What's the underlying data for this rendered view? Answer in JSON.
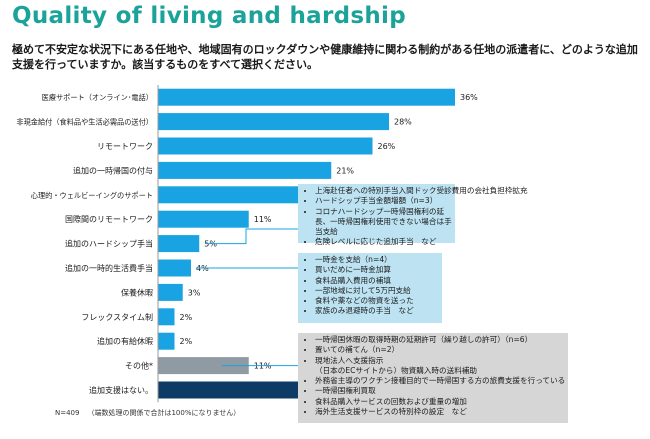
{
  "title": "Quality of living and hardship",
  "question": "極めて不安定な状況下にある任地や、地域固有のロックダウンや健康維持に関わる制約がある任地の派遣者に、どのような追加支援を行っていますか。該当するものをすべて選択ください。",
  "chart_data": {
    "type": "bar",
    "orientation": "horizontal",
    "categories": [
      "医療サポート（オンライン･電話）",
      "非現金給付（食料品や生活必需品の送付）",
      "リモートワーク",
      "追加の一時帰国の付与",
      "心理的・ウェルビーイングのサポート",
      "国際間のリモートワーク",
      "追加のハードシップ手当",
      "追加の一時的生活費手当",
      "保養休暇",
      "フレックスタイム制",
      "追加の有給休暇",
      "その他*",
      "追加支援はない。"
    ],
    "values": [
      36,
      28,
      26,
      21,
      20,
      11,
      5,
      4,
      3,
      2,
      2,
      11,
      25
    ],
    "value_labels": [
      "36%",
      "28%",
      "26%",
      "21%",
      "20%",
      "11%",
      "5%",
      "4%",
      "3%",
      "2%",
      "2%",
      "11%",
      "25%"
    ],
    "colors": [
      "#1aa3e2",
      "#1aa3e2",
      "#1aa3e2",
      "#1aa3e2",
      "#1aa3e2",
      "#1aa3e2",
      "#1aa3e2",
      "#1aa3e2",
      "#1aa3e2",
      "#1aa3e2",
      "#1aa3e2",
      "#8f9aa3",
      "#0d3b66"
    ],
    "xlim": [
      0,
      40
    ],
    "axis_line_color": "#999999",
    "connector_color": "#1aa3e2",
    "grid": false,
    "legend": false
  },
  "notes": {
    "hardship": [
      "上海赴任者への特別手当入間ドック受診費用の会社負担枠拡充",
      "ハードシップ手当金額増額（n=3）",
      "コロナハードシップ一時帰国権利の延長、一時帰国権利使用できない場合は手当支給",
      "危険レベルに応じた追加手当　など"
    ],
    "living_allowance": [
      "一時金を支給（n=4）",
      "買いだめに一時金加算",
      "食料品購入費用の補填",
      "一部地域に対して5万円支給",
      "食料や薬などの物資を送った",
      "家族のみ退避時の手当　など"
    ],
    "other": [
      "一時帰国休暇の取得時期の延期許可（繰り越しの許可）（n=6）",
      "置いての補てん（n=2）",
      "現地法人へ支援指示",
      "（日本のECサイトから）物資購入時の送料補助",
      "外務省主導のワクチン接種目的で一時帰国する方の旅費支援を行っている",
      "一時帰国権利買取",
      "食料品購入サービスの回数および重量の増加",
      "海外生活支援サービスの特別枠の設定　など"
    ]
  },
  "footnote": {
    "n": "N=409",
    "rounding": "（端数処理の関係で合計は100%になりません）"
  }
}
